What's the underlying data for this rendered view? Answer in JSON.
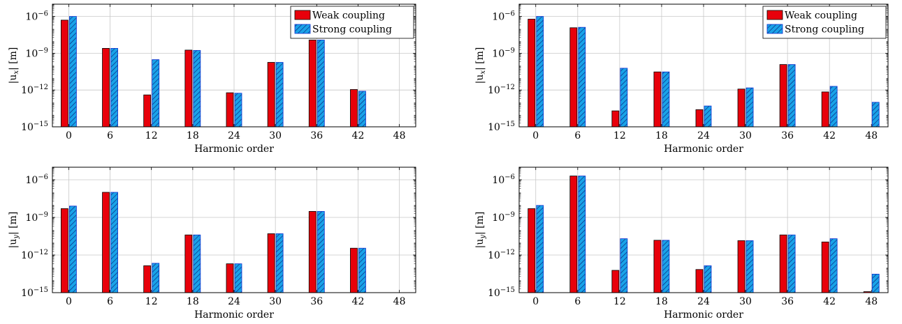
{
  "colors": {
    "weak": "#e8000b",
    "strong": "#1aa3e8",
    "strong_border": "#1030d0",
    "weak_border": "#000000",
    "grid": "#c8c8c8",
    "axis": "#000000"
  },
  "legend_labels": [
    "Weak coupling",
    "Strong coupling"
  ],
  "chart_data": [
    {
      "type": "bar",
      "xlabel": "Harmonic order",
      "ylabel_base": "|u",
      "ylabel_sub": "x",
      "ylabel_unit": "| [m]",
      "yscale": "log",
      "ylim": [
        1e-15,
        1e-05
      ],
      "y_ticks": [
        {
          "value": 1e-15,
          "exp": "-15"
        },
        {
          "value": 1e-12,
          "exp": "-12"
        },
        {
          "value": 1e-09,
          "exp": "-9"
        },
        {
          "value": 1e-06,
          "exp": "-6"
        }
      ],
      "categories": [
        "0",
        "6",
        "12",
        "18",
        "24",
        "30",
        "36",
        "42",
        "48"
      ],
      "series": [
        {
          "name": "Weak coupling",
          "values": [
            5e-07,
            2.5e-09,
            4e-13,
            1.8e-09,
            6e-13,
            1.8e-10,
            1.2e-08,
            1.1e-12,
            null
          ]
        },
        {
          "name": "Strong coupling",
          "values": [
            1e-06,
            2.5e-09,
            3e-10,
            1.7e-09,
            5.5e-13,
            1.8e-10,
            1.2e-08,
            8e-13,
            null
          ]
        }
      ],
      "legend": "top-right",
      "grid": true
    },
    {
      "type": "bar",
      "xlabel": "Harmonic order",
      "ylabel_base": "|u",
      "ylabel_sub": "x",
      "ylabel_unit": "| [m]",
      "yscale": "log",
      "ylim": [
        1e-15,
        1e-05
      ],
      "y_ticks": [
        {
          "value": 1e-15,
          "exp": "-15"
        },
        {
          "value": 1e-12,
          "exp": "-12"
        },
        {
          "value": 1e-09,
          "exp": "-9"
        },
        {
          "value": 1e-06,
          "exp": "-6"
        }
      ],
      "categories": [
        "0",
        "6",
        "12",
        "18",
        "24",
        "30",
        "36",
        "42",
        "48"
      ],
      "series": [
        {
          "name": "Weak coupling",
          "values": [
            6e-07,
            1.2e-07,
            2e-14,
            3e-11,
            2.5e-14,
            1.2e-12,
            1.2e-10,
            7e-13,
            null
          ]
        },
        {
          "name": "Strong coupling",
          "values": [
            1e-06,
            1.3e-07,
            6e-11,
            3e-11,
            5e-14,
            1.5e-12,
            1.2e-10,
            2e-12,
            1e-13
          ]
        }
      ],
      "legend": "top-right",
      "grid": true
    },
    {
      "type": "bar",
      "xlabel": "Harmonic order",
      "ylabel_base": "|u",
      "ylabel_sub": "y",
      "ylabel_unit": "| [m]",
      "yscale": "log",
      "ylim": [
        1e-15,
        1e-05
      ],
      "y_ticks": [
        {
          "value": 1e-15,
          "exp": "-15"
        },
        {
          "value": 1e-12,
          "exp": "-12"
        },
        {
          "value": 1e-09,
          "exp": "-9"
        },
        {
          "value": 1e-06,
          "exp": "-6"
        }
      ],
      "categories": [
        "0",
        "6",
        "12",
        "18",
        "24",
        "30",
        "36",
        "42",
        "48"
      ],
      "series": [
        {
          "name": "Weak coupling",
          "values": [
            5e-09,
            1e-07,
            1.4e-13,
            4e-11,
            2e-13,
            5e-11,
            3e-09,
            3.5e-12,
            null
          ]
        },
        {
          "name": "Strong coupling",
          "values": [
            8e-09,
            1e-07,
            2.2e-13,
            4e-11,
            2e-13,
            5e-11,
            3e-09,
            3.5e-12,
            null
          ]
        }
      ],
      "legend": "none",
      "grid": true
    },
    {
      "type": "bar",
      "xlabel": "Harmonic order",
      "ylabel_base": "|u",
      "ylabel_sub": "y",
      "ylabel_unit": "| [m]",
      "yscale": "log",
      "ylim": [
        1e-15,
        1e-05
      ],
      "y_ticks": [
        {
          "value": 1e-15,
          "exp": "-15"
        },
        {
          "value": 1e-12,
          "exp": "-12"
        },
        {
          "value": 1e-09,
          "exp": "-9"
        },
        {
          "value": 1e-06,
          "exp": "-6"
        }
      ],
      "categories": [
        "0",
        "6",
        "12",
        "18",
        "24",
        "30",
        "36",
        "42",
        "48"
      ],
      "series": [
        {
          "name": "Weak coupling",
          "values": [
            5e-09,
            2e-06,
            6e-14,
            1.5e-11,
            7e-14,
            1.4e-11,
            4e-11,
            1.1e-11,
            1.2e-15
          ]
        },
        {
          "name": "Strong coupling",
          "values": [
            9e-09,
            2e-06,
            2e-11,
            1.5e-11,
            1.4e-13,
            1.4e-11,
            4e-11,
            2e-11,
            3e-14
          ]
        }
      ],
      "legend": "none",
      "grid": true
    }
  ]
}
